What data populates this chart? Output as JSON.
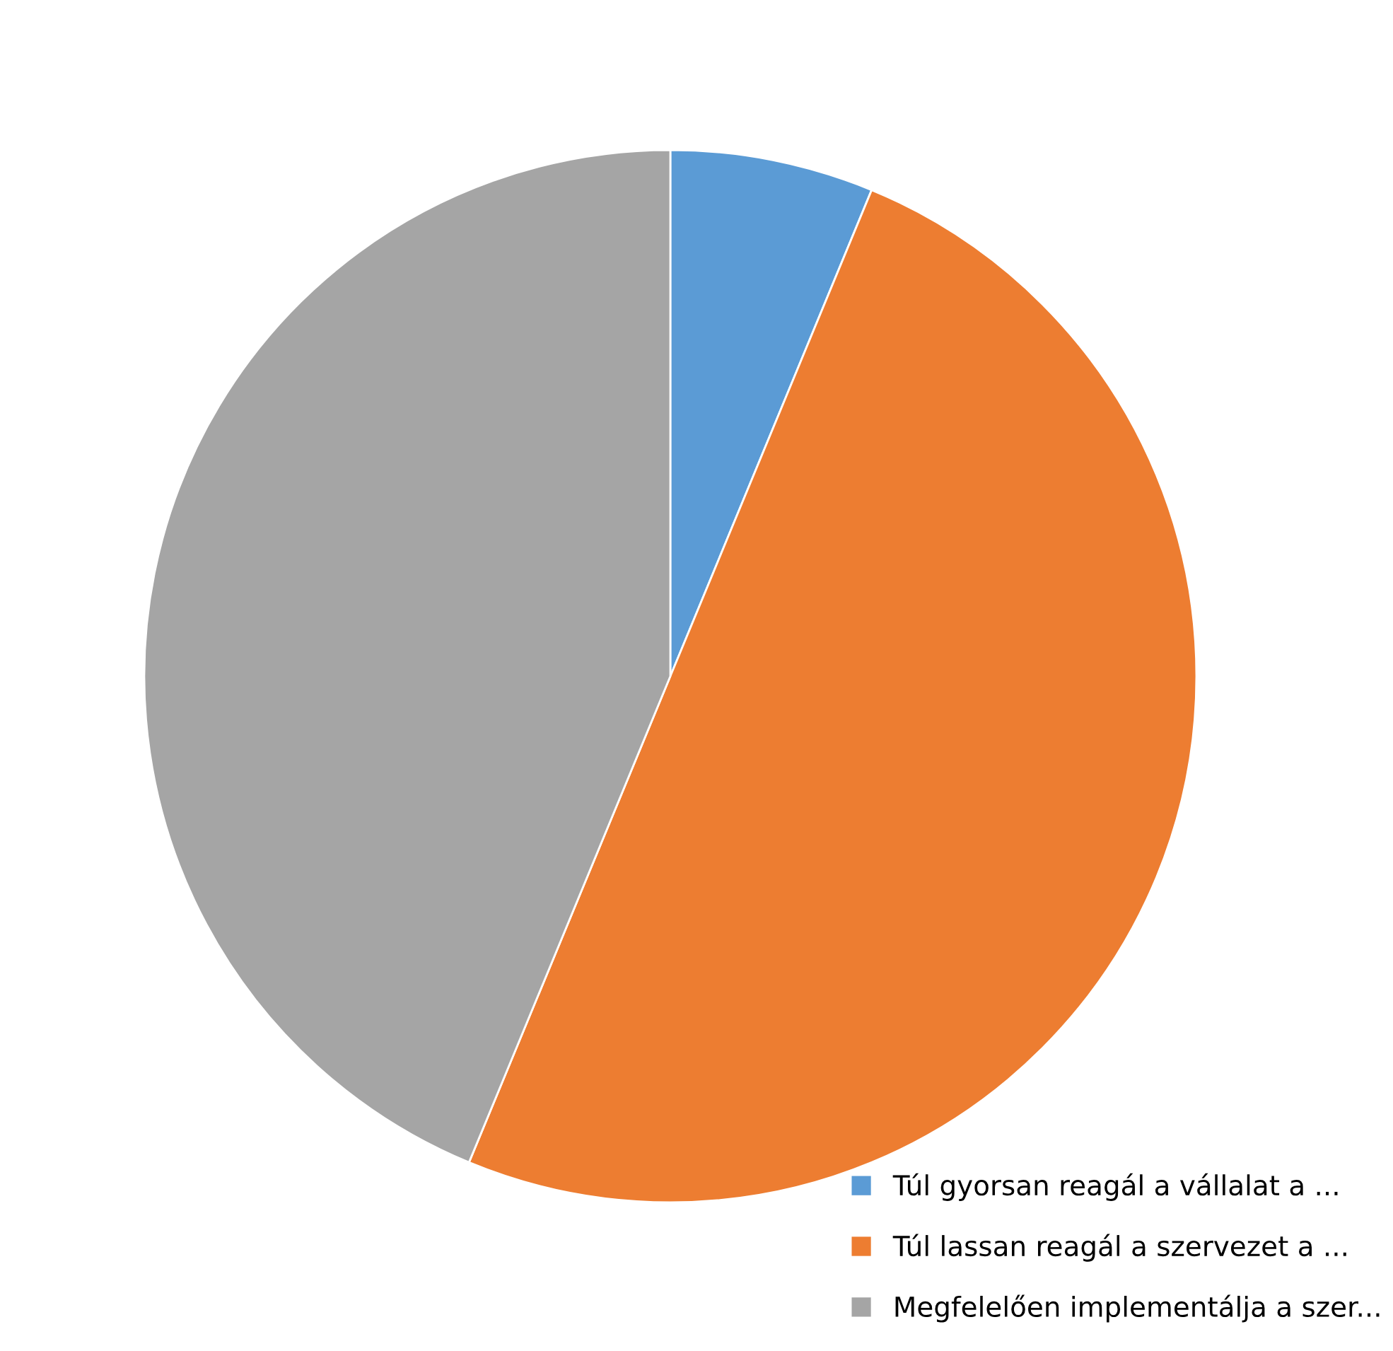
{
  "chart_data": {
    "type": "pie",
    "categories": [
      "Túl gyorsan reagál a vállalat a ...",
      "Túl lassan reagál a szervezet a ...",
      "Megfelelően implementálja a szer..."
    ],
    "values": [
      6.25,
      50,
      43.75
    ],
    "colors": [
      "#5b9bd5",
      "#ed7d31",
      "#a5a5a5"
    ],
    "legend": "bottom right"
  }
}
